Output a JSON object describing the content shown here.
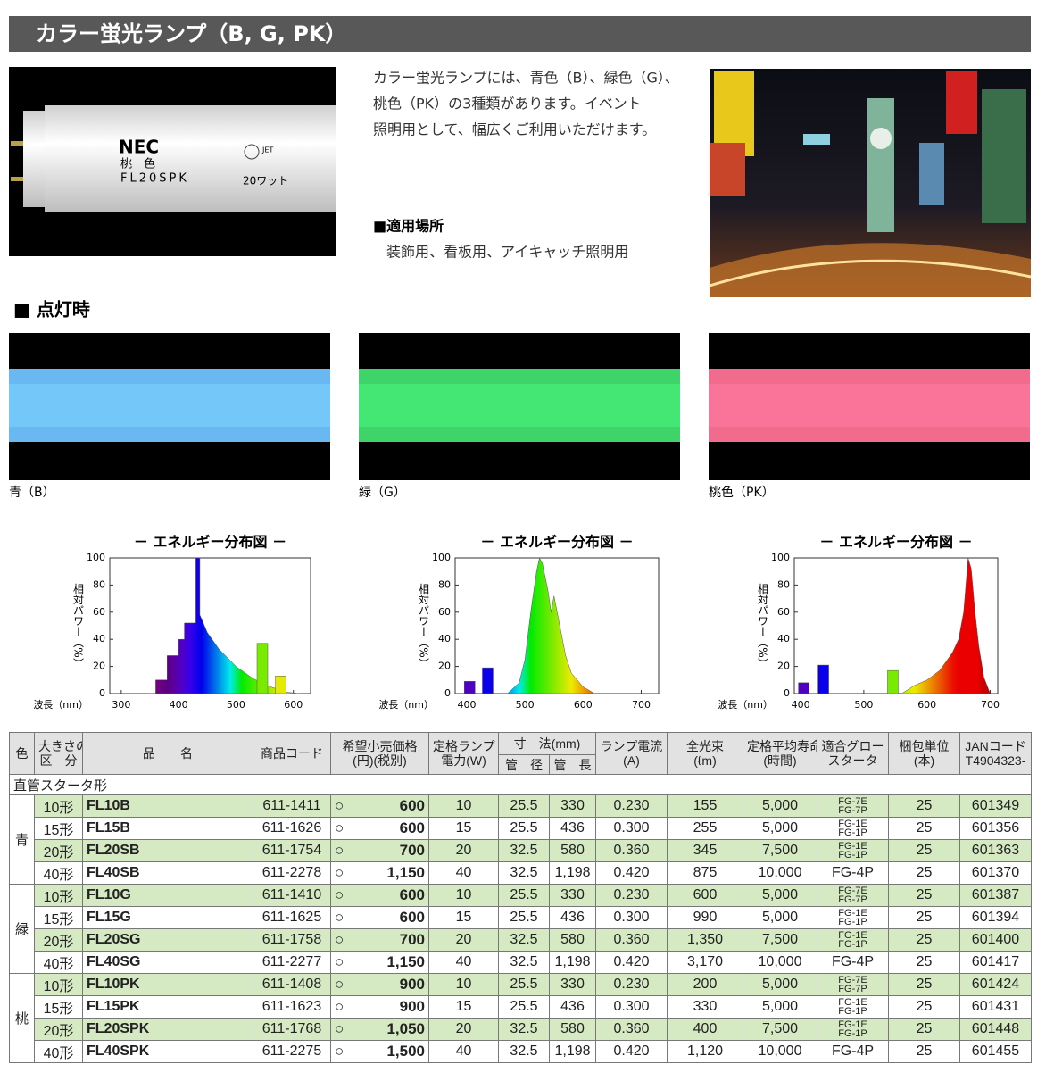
{
  "header": {
    "title": "カラー蛍光ランプ（B, G, PK）"
  },
  "lamp_photo": {
    "brand": "NEC",
    "color": "桃　色",
    "model": "FL20SPK",
    "mark": "JET",
    "watt": "20ワット"
  },
  "intro": {
    "lines": [
      "カラー蛍光ランプには、青色（B）、緑色（G）、",
      "桃色（PK）の3種類があります。イベント",
      "照明用として、幅広くご利用いただけます。"
    ]
  },
  "usage": {
    "heading": "■適用場所",
    "text": "装飾用、看板用、アイキャッチ照明用"
  },
  "lit_section": {
    "heading": "■ 点灯時",
    "lamps": [
      {
        "caption": "青（B）",
        "color": "#6ab8f2"
      },
      {
        "caption": "緑（G）",
        "color": "#3fd46a"
      },
      {
        "caption": "桃色（PK）",
        "color": "#f06b8c"
      }
    ]
  },
  "chart_data": [
    {
      "type": "area",
      "title": "－ エネルギー分布図 －",
      "xlabel": "波長（nm）",
      "ylabel": "相対パワー（%）",
      "xlim": [
        280,
        630
      ],
      "ylim": [
        0,
        100
      ],
      "xticks": [
        300,
        400,
        500,
        600
      ],
      "yticks": [
        0,
        20,
        40,
        60,
        80,
        100
      ],
      "series": [
        {
          "type": "area",
          "x": [
            345,
            360,
            360,
            380,
            380,
            400,
            400,
            410,
            410,
            430,
            430,
            437,
            437,
            450,
            470,
            500,
            530,
            560,
            590,
            610
          ],
          "values": [
            0,
            0,
            10,
            10,
            28,
            28,
            40,
            40,
            52,
            52,
            100,
            100,
            58,
            45,
            33,
            20,
            11,
            5,
            1,
            0
          ]
        },
        {
          "type": "bar",
          "x": [
            546,
            578
          ],
          "values": [
            37,
            13
          ]
        }
      ]
    },
    {
      "type": "area",
      "title": "－ エネルギー分布図 －",
      "xlabel": "波長（nm）",
      "ylabel": "相対パワー（%）",
      "xlim": [
        380,
        730
      ],
      "ylim": [
        0,
        100
      ],
      "xticks": [
        400,
        500,
        600,
        700
      ],
      "yticks": [
        0,
        20,
        40,
        60,
        80,
        100
      ],
      "series": [
        {
          "type": "area",
          "x": [
            470,
            490,
            500,
            510,
            520,
            525,
            530,
            540,
            545,
            550,
            560,
            570,
            580,
            600,
            620
          ],
          "values": [
            0,
            8,
            25,
            60,
            90,
            100,
            96,
            75,
            60,
            72,
            50,
            28,
            15,
            5,
            0
          ]
        },
        {
          "type": "bar",
          "x": [
            405,
            436
          ],
          "values": [
            9,
            19
          ]
        }
      ]
    },
    {
      "type": "area",
      "title": "－ エネルギー分布図 －",
      "xlabel": "波長（nm）",
      "ylabel": "相対パワー（%）",
      "xlim": [
        390,
        712
      ],
      "ylim": [
        0,
        100
      ],
      "xticks": [
        400,
        500,
        600,
        700
      ],
      "yticks": [
        0,
        20,
        40,
        60,
        80,
        100
      ],
      "series": [
        {
          "type": "area",
          "x": [
            560,
            580,
            600,
            620,
            640,
            650,
            658,
            665,
            670,
            676,
            682,
            690,
            700
          ],
          "values": [
            0,
            6,
            10,
            17,
            30,
            40,
            60,
            100,
            92,
            60,
            35,
            12,
            0
          ]
        },
        {
          "type": "bar",
          "x": [
            405,
            436,
            546
          ],
          "values": [
            8,
            21,
            17
          ]
        }
      ]
    }
  ],
  "table": {
    "headers": {
      "color": "色",
      "size": [
        "大きさの",
        "区　分"
      ],
      "name": "品　　名",
      "code": "商品コード",
      "price": [
        "希望小売価格",
        "(円)(税別)"
      ],
      "watt": [
        "定格ランプ",
        "電力(W)"
      ],
      "dimension": "寸　法(mm)",
      "diameter": "管　径",
      "length": "管　長",
      "current": [
        "ランプ電流",
        "(A)"
      ],
      "lumen": [
        "全光束",
        "(ℓm)"
      ],
      "life": [
        "定格平均寿命",
        "(時間)"
      ],
      "starter": [
        "適合グロー",
        "スタータ"
      ],
      "pack": [
        "梱包単位",
        "(本)"
      ],
      "jan": [
        "JANコード",
        "T4904323-"
      ]
    },
    "section": "直管スタータ形",
    "price_mark": "○",
    "groups": [
      {
        "color": "青",
        "rows": [
          {
            "size": "10形",
            "name": "FL10B",
            "code": "611-1411",
            "price": "600",
            "watt": "10",
            "diameter": "25.5",
            "length": "330",
            "current": "0.230",
            "lumen": "155",
            "life": "5,000",
            "starter": [
              "FG-7E",
              "FG-7P"
            ],
            "pack": "25",
            "jan": "601349"
          },
          {
            "size": "15形",
            "name": "FL15B",
            "code": "611-1626",
            "price": "600",
            "watt": "15",
            "diameter": "25.5",
            "length": "436",
            "current": "0.300",
            "lumen": "255",
            "life": "5,000",
            "starter": [
              "FG-1E",
              "FG-1P"
            ],
            "pack": "25",
            "jan": "601356"
          },
          {
            "size": "20形",
            "name": "FL20SB",
            "code": "611-1754",
            "price": "700",
            "watt": "20",
            "diameter": "32.5",
            "length": "580",
            "current": "0.360",
            "lumen": "345",
            "life": "7,500",
            "starter": [
              "FG-1E",
              "FG-1P"
            ],
            "pack": "25",
            "jan": "601363"
          },
          {
            "size": "40形",
            "name": "FL40SB",
            "code": "611-2278",
            "price": "1,150",
            "watt": "40",
            "diameter": "32.5",
            "length": "1,198",
            "current": "0.420",
            "lumen": "875",
            "life": "10,000",
            "starter": [
              "FG-4P"
            ],
            "pack": "25",
            "jan": "601370"
          }
        ]
      },
      {
        "color": "緑",
        "rows": [
          {
            "size": "10形",
            "name": "FL10G",
            "code": "611-1410",
            "price": "600",
            "watt": "10",
            "diameter": "25.5",
            "length": "330",
            "current": "0.230",
            "lumen": "600",
            "life": "5,000",
            "starter": [
              "FG-7E",
              "FG-7P"
            ],
            "pack": "25",
            "jan": "601387"
          },
          {
            "size": "15形",
            "name": "FL15G",
            "code": "611-1625",
            "price": "600",
            "watt": "15",
            "diameter": "25.5",
            "length": "436",
            "current": "0.300",
            "lumen": "990",
            "life": "5,000",
            "starter": [
              "FG-1E",
              "FG-1P"
            ],
            "pack": "25",
            "jan": "601394"
          },
          {
            "size": "20形",
            "name": "FL20SG",
            "code": "611-1758",
            "price": "700",
            "watt": "20",
            "diameter": "32.5",
            "length": "580",
            "current": "0.360",
            "lumen": "1,350",
            "life": "7,500",
            "starter": [
              "FG-1E",
              "FG-1P"
            ],
            "pack": "25",
            "jan": "601400"
          },
          {
            "size": "40形",
            "name": "FL40SG",
            "code": "611-2277",
            "price": "1,150",
            "watt": "40",
            "diameter": "32.5",
            "length": "1,198",
            "current": "0.420",
            "lumen": "3,170",
            "life": "10,000",
            "starter": [
              "FG-4P"
            ],
            "pack": "25",
            "jan": "601417"
          }
        ]
      },
      {
        "color": "桃",
        "rows": [
          {
            "size": "10形",
            "name": "FL10PK",
            "code": "611-1408",
            "price": "900",
            "watt": "10",
            "diameter": "25.5",
            "length": "330",
            "current": "0.230",
            "lumen": "200",
            "life": "5,000",
            "starter": [
              "FG-7E",
              "FG-7P"
            ],
            "pack": "25",
            "jan": "601424"
          },
          {
            "size": "15形",
            "name": "FL15PK",
            "code": "611-1623",
            "price": "900",
            "watt": "15",
            "diameter": "25.5",
            "length": "436",
            "current": "0.300",
            "lumen": "330",
            "life": "5,000",
            "starter": [
              "FG-1E",
              "FG-1P"
            ],
            "pack": "25",
            "jan": "601431"
          },
          {
            "size": "20形",
            "name": "FL20SPK",
            "code": "611-1768",
            "price": "1,050",
            "watt": "20",
            "diameter": "32.5",
            "length": "580",
            "current": "0.360",
            "lumen": "400",
            "life": "7,500",
            "starter": [
              "FG-1E",
              "FG-1P"
            ],
            "pack": "25",
            "jan": "601448"
          },
          {
            "size": "40形",
            "name": "FL40SPK",
            "code": "611-2275",
            "price": "1,500",
            "watt": "40",
            "diameter": "32.5",
            "length": "1,198",
            "current": "0.420",
            "lumen": "1,120",
            "life": "10,000",
            "starter": [
              "FG-4P"
            ],
            "pack": "25",
            "jan": "601455"
          }
        ]
      }
    ]
  }
}
